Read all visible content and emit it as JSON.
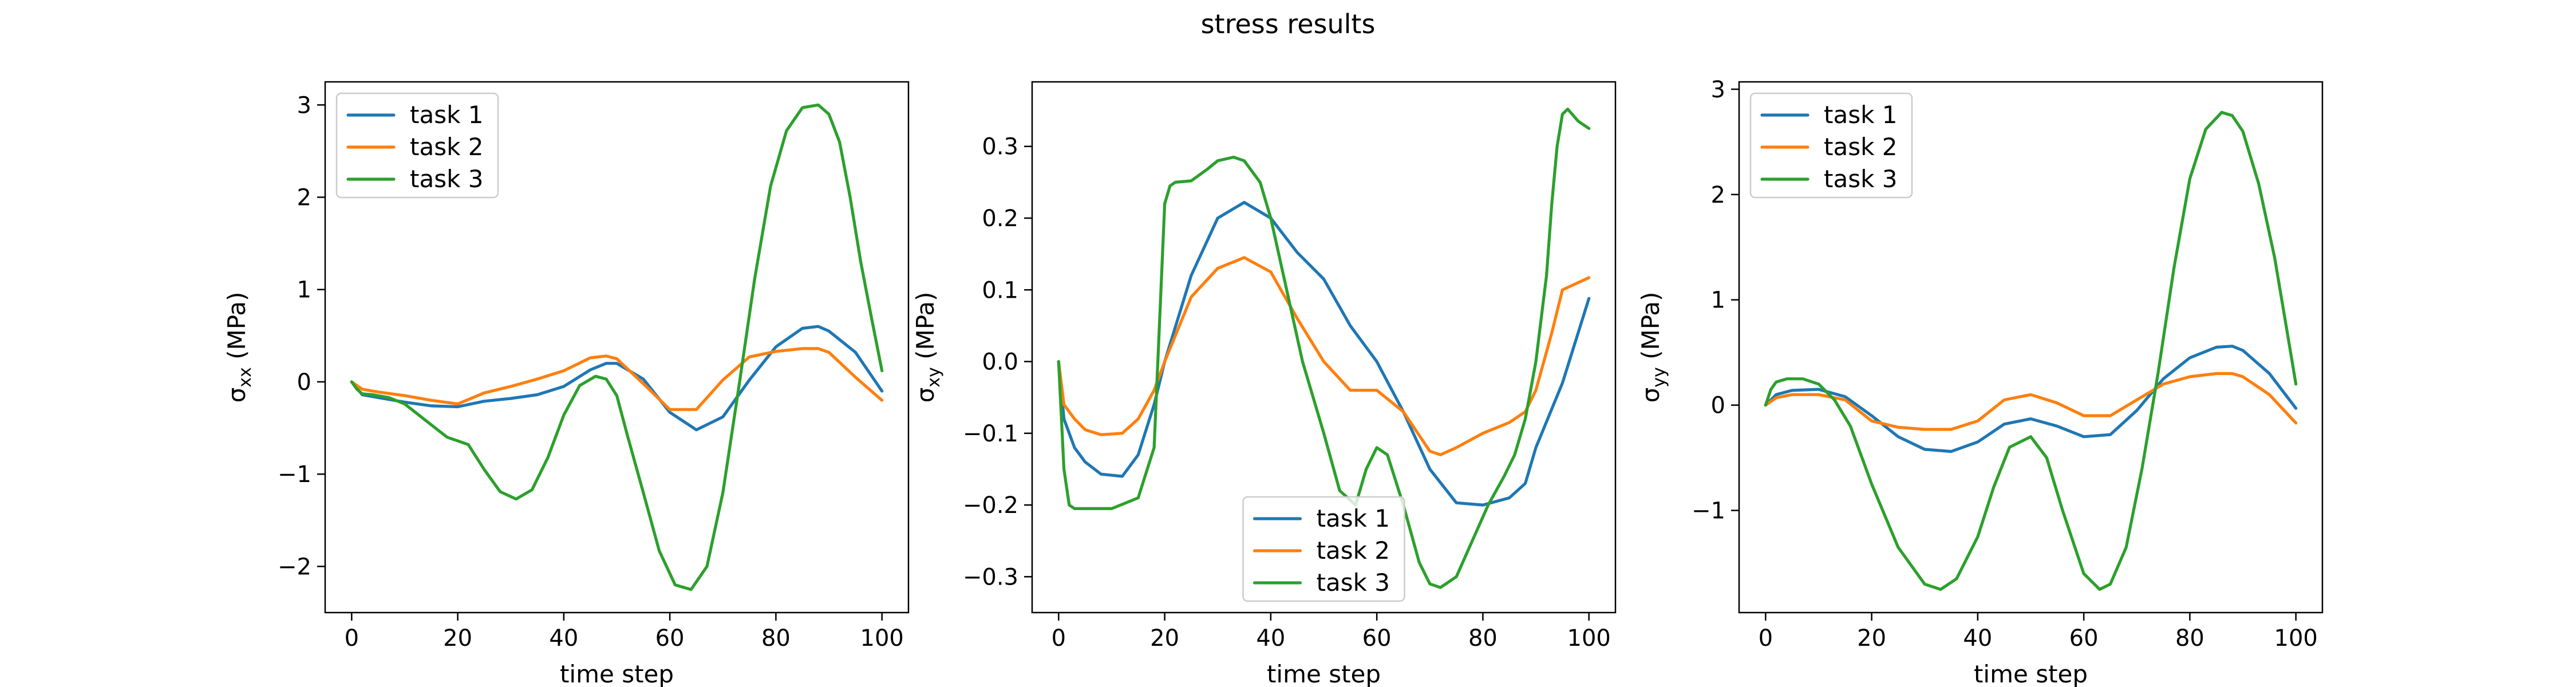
{
  "figure": {
    "title": "stress results",
    "colors": {
      "task_1": "#1f77b4",
      "task_2": "#ff7f0e",
      "task_3": "#2ca02c"
    }
  },
  "chart_data": [
    {
      "type": "line",
      "xlabel": "time step",
      "ylabel": "σxx (MPa)",
      "ylabel_parts": {
        "symbol": "σ",
        "sub": "xx",
        "unit": " (MPa)"
      },
      "xlim": [
        -5,
        105
      ],
      "ylim": [
        -2.5,
        3.25
      ],
      "xticks": [
        0,
        20,
        40,
        60,
        80,
        100
      ],
      "yticks": [
        -2,
        -1,
        0,
        1,
        2,
        3
      ],
      "legend": "upper-left",
      "series": [
        {
          "name": "task 1",
          "color": "#1f77b4",
          "x": [
            0,
            2,
            5,
            10,
            15,
            20,
            25,
            30,
            35,
            40,
            45,
            48,
            50,
            55,
            60,
            65,
            70,
            75,
            80,
            85,
            88,
            90,
            95,
            100
          ],
          "y": [
            0,
            -0.14,
            -0.17,
            -0.22,
            -0.26,
            -0.27,
            -0.21,
            -0.18,
            -0.14,
            -0.05,
            0.13,
            0.2,
            0.2,
            0.03,
            -0.33,
            -0.52,
            -0.38,
            0.02,
            0.38,
            0.58,
            0.6,
            0.55,
            0.32,
            -0.1
          ]
        },
        {
          "name": "task 2",
          "color": "#ff7f0e",
          "x": [
            0,
            2,
            5,
            10,
            15,
            20,
            25,
            30,
            35,
            40,
            45,
            48,
            50,
            55,
            60,
            65,
            70,
            75,
            80,
            85,
            88,
            90,
            95,
            100
          ],
          "y": [
            0,
            -0.08,
            -0.11,
            -0.15,
            -0.2,
            -0.24,
            -0.12,
            -0.05,
            0.03,
            0.12,
            0.26,
            0.28,
            0.25,
            -0.02,
            -0.3,
            -0.3,
            0.02,
            0.27,
            0.33,
            0.36,
            0.36,
            0.32,
            0.05,
            -0.2
          ]
        },
        {
          "name": "task 3",
          "color": "#2ca02c",
          "x": [
            0,
            1,
            2,
            4,
            7,
            10,
            14,
            18,
            22,
            25,
            28,
            31,
            34,
            37,
            40,
            43,
            46,
            48,
            50,
            52,
            55,
            58,
            61,
            64,
            67,
            70,
            73,
            76,
            79,
            82,
            85,
            88,
            90,
            92,
            94,
            96,
            98,
            100
          ],
          "y": [
            0,
            -0.08,
            -0.13,
            -0.14,
            -0.17,
            -0.24,
            -0.42,
            -0.6,
            -0.68,
            -0.95,
            -1.19,
            -1.27,
            -1.17,
            -0.82,
            -0.36,
            -0.04,
            0.06,
            0.03,
            -0.15,
            -0.58,
            -1.2,
            -1.83,
            -2.2,
            -2.25,
            -2.0,
            -1.2,
            -0.06,
            1.12,
            2.12,
            2.72,
            2.97,
            3.0,
            2.9,
            2.6,
            2.0,
            1.3,
            0.7,
            0.12
          ]
        }
      ]
    },
    {
      "type": "line",
      "xlabel": "time step",
      "ylabel": "σxy (MPa)",
      "ylabel_parts": {
        "symbol": "σ",
        "sub": "xy",
        "unit": " (MPa)"
      },
      "xlim": [
        -5,
        105
      ],
      "ylim": [
        -0.35,
        0.39
      ],
      "xticks": [
        0,
        20,
        40,
        60,
        80,
        100
      ],
      "yticks": [
        -0.3,
        -0.2,
        -0.1,
        0.0,
        0.1,
        0.2,
        0.3
      ],
      "yticks_text": [
        "−0.3",
        "−0.2",
        "−0.1",
        "0.0",
        "0.1",
        "0.2",
        "0.3"
      ],
      "legend": "lower-center",
      "series": [
        {
          "name": "task 1",
          "color": "#1f77b4",
          "x": [
            0,
            1,
            3,
            5,
            8,
            12,
            15,
            18,
            20,
            25,
            30,
            35,
            40,
            45,
            50,
            55,
            60,
            65,
            70,
            75,
            80,
            85,
            88,
            90,
            95,
            100
          ],
          "y": [
            0,
            -0.08,
            -0.12,
            -0.14,
            -0.157,
            -0.16,
            -0.13,
            -0.06,
            0.0,
            0.12,
            0.2,
            0.222,
            0.2,
            0.152,
            0.115,
            0.05,
            0.0,
            -0.07,
            -0.15,
            -0.197,
            -0.2,
            -0.19,
            -0.17,
            -0.12,
            -0.03,
            0.088
          ]
        },
        {
          "name": "task 2",
          "color": "#ff7f0e",
          "x": [
            0,
            1,
            3,
            5,
            8,
            12,
            15,
            18,
            20,
            25,
            30,
            35,
            40,
            45,
            50,
            55,
            60,
            65,
            70,
            72,
            75,
            80,
            85,
            88,
            90,
            93,
            95,
            100
          ],
          "y": [
            0,
            -0.06,
            -0.08,
            -0.095,
            -0.102,
            -0.1,
            -0.08,
            -0.04,
            0.0,
            0.09,
            0.13,
            0.145,
            0.125,
            0.06,
            0.0,
            -0.04,
            -0.04,
            -0.07,
            -0.125,
            -0.13,
            -0.12,
            -0.1,
            -0.085,
            -0.07,
            -0.04,
            0.04,
            0.1,
            0.117
          ]
        },
        {
          "name": "task 3",
          "color": "#2ca02c",
          "x": [
            0,
            1,
            2,
            3,
            5,
            10,
            15,
            18,
            20,
            21,
            22,
            25,
            28,
            30,
            33,
            35,
            38,
            40,
            43,
            46,
            50,
            53,
            56,
            58,
            60,
            62,
            65,
            68,
            70,
            72,
            75,
            78,
            81,
            84,
            86,
            88,
            90,
            92,
            93,
            94,
            95,
            96,
            98,
            100
          ],
          "y": [
            0,
            -0.15,
            -0.2,
            -0.205,
            -0.205,
            -0.205,
            -0.19,
            -0.12,
            0.22,
            0.245,
            0.25,
            0.252,
            0.268,
            0.28,
            0.285,
            0.28,
            0.25,
            0.2,
            0.1,
            0.0,
            -0.1,
            -0.18,
            -0.2,
            -0.15,
            -0.12,
            -0.13,
            -0.2,
            -0.28,
            -0.31,
            -0.315,
            -0.3,
            -0.25,
            -0.2,
            -0.16,
            -0.13,
            -0.08,
            0.0,
            0.12,
            0.22,
            0.3,
            0.345,
            0.352,
            0.335,
            0.325
          ]
        }
      ]
    },
    {
      "type": "line",
      "xlabel": "time step",
      "ylabel": "σyy (MPa)",
      "ylabel_parts": {
        "symbol": "σ",
        "sub": "yy",
        "unit": " (MPa)"
      },
      "xlim": [
        -5,
        105
      ],
      "ylim": [
        -1.97,
        3.07
      ],
      "xticks": [
        0,
        20,
        40,
        60,
        80,
        100
      ],
      "yticks": [
        -1,
        0,
        1,
        2,
        3
      ],
      "legend": "upper-left",
      "series": [
        {
          "name": "task 1",
          "color": "#1f77b4",
          "x": [
            0,
            2,
            5,
            10,
            15,
            20,
            25,
            30,
            35,
            40,
            45,
            50,
            55,
            60,
            65,
            70,
            75,
            80,
            85,
            88,
            90,
            95,
            100
          ],
          "y": [
            0,
            0.1,
            0.14,
            0.15,
            0.08,
            -0.1,
            -0.3,
            -0.42,
            -0.44,
            -0.35,
            -0.18,
            -0.13,
            -0.2,
            -0.3,
            -0.28,
            -0.05,
            0.25,
            0.45,
            0.55,
            0.56,
            0.52,
            0.3,
            -0.03
          ]
        },
        {
          "name": "task 2",
          "color": "#ff7f0e",
          "x": [
            0,
            2,
            5,
            10,
            15,
            20,
            25,
            30,
            35,
            40,
            45,
            50,
            55,
            60,
            65,
            70,
            75,
            80,
            85,
            88,
            90,
            95,
            100
          ],
          "y": [
            0,
            0.07,
            0.1,
            0.1,
            0.05,
            -0.15,
            -0.21,
            -0.23,
            -0.23,
            -0.15,
            0.05,
            0.1,
            0.02,
            -0.1,
            -0.1,
            0.05,
            0.2,
            0.27,
            0.3,
            0.3,
            0.27,
            0.1,
            -0.17
          ]
        },
        {
          "name": "task 3",
          "color": "#2ca02c",
          "x": [
            0,
            1,
            2,
            4,
            7,
            10,
            13,
            16,
            20,
            25,
            30,
            33,
            36,
            40,
            43,
            46,
            50,
            53,
            56,
            60,
            63,
            65,
            68,
            71,
            74,
            77,
            80,
            83,
            86,
            88,
            90,
            93,
            96,
            98,
            100
          ],
          "y": [
            0,
            0.15,
            0.22,
            0.25,
            0.25,
            0.2,
            0.05,
            -0.2,
            -0.75,
            -1.35,
            -1.7,
            -1.75,
            -1.65,
            -1.25,
            -0.78,
            -0.4,
            -0.3,
            -0.5,
            -1.0,
            -1.6,
            -1.75,
            -1.7,
            -1.35,
            -0.6,
            0.3,
            1.3,
            2.15,
            2.62,
            2.78,
            2.75,
            2.6,
            2.1,
            1.4,
            0.8,
            0.2
          ]
        }
      ]
    }
  ]
}
